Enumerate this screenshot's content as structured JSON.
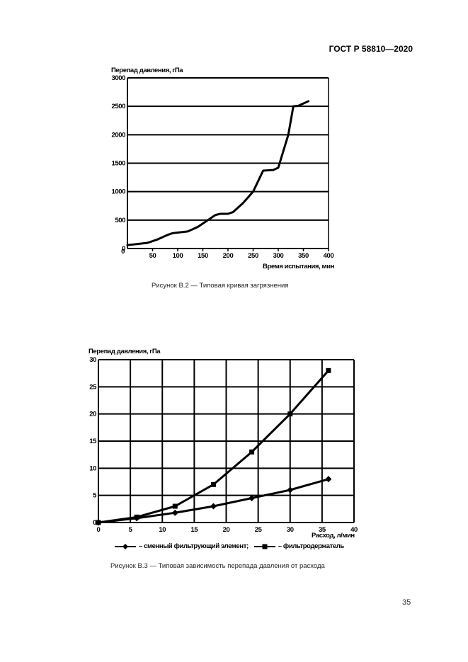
{
  "header": {
    "standard": "ГОСТ Р 58810—2020"
  },
  "figure_b2": {
    "y_title": "Перепад давления, гПа",
    "x_title": "Время испытания, мин",
    "caption": "Рисунок В.2 — Типовая кривая загрязнения"
  },
  "figure_b3": {
    "y_title": "Перепад давления, гПа",
    "x_title": "Расход, л/мин",
    "caption": "Рисунок В.3 — Типовая зависимость перепада давления от расхода",
    "legend": [
      {
        "label": "– сменный фильтрующий элемент;",
        "marker": "diamond"
      },
      {
        "label": "– фильтродержатель",
        "marker": "square"
      }
    ]
  },
  "page_number": "35",
  "chart_data": [
    {
      "type": "line",
      "title": "Рисунок В.2 — Типовая кривая загрязнения",
      "xlabel": "Время испытания, мин",
      "ylabel": "Перепад давления, гПа",
      "xlim": [
        0,
        400
      ],
      "ylim": [
        0,
        3000
      ],
      "xticks": [
        0,
        50,
        100,
        150,
        200,
        250,
        300,
        350,
        400
      ],
      "yticks": [
        0,
        500,
        1000,
        1500,
        2000,
        2500,
        3000
      ],
      "grid": "horizontal",
      "series": [
        {
          "name": "Перепад давления",
          "x": [
            0,
            20,
            40,
            60,
            80,
            90,
            100,
            120,
            140,
            160,
            175,
            185,
            200,
            210,
            230,
            250,
            270,
            290,
            300,
            320,
            330,
            340,
            360
          ],
          "y": [
            60,
            80,
            100,
            160,
            240,
            270,
            280,
            300,
            380,
            500,
            590,
            610,
            610,
            640,
            800,
            1000,
            1370,
            1380,
            1420,
            2000,
            2500,
            2510,
            2590
          ]
        }
      ]
    },
    {
      "type": "line",
      "title": "Рисунок В.3 — Типовая зависимость перепада давления от расхода",
      "xlabel": "Расход, л/мин",
      "ylabel": "Перепад давления, гПа",
      "xlim": [
        0,
        40
      ],
      "ylim": [
        0,
        30
      ],
      "xticks": [
        0,
        5,
        10,
        15,
        20,
        25,
        30,
        35,
        40
      ],
      "yticks": [
        0,
        5,
        10,
        15,
        20,
        25,
        30
      ],
      "grid": "both",
      "legend_position": "bottom",
      "series": [
        {
          "name": "сменный фильтрующий элемент",
          "marker": "diamond",
          "x": [
            0,
            6,
            12,
            18,
            24,
            30,
            36
          ],
          "y": [
            0,
            0.8,
            1.8,
            3,
            4.5,
            6,
            8
          ]
        },
        {
          "name": "фильтродержатель",
          "marker": "square",
          "x": [
            0,
            6,
            12,
            18,
            24,
            30,
            36
          ],
          "y": [
            0,
            1,
            3,
            7,
            13,
            20,
            28
          ]
        }
      ]
    }
  ]
}
